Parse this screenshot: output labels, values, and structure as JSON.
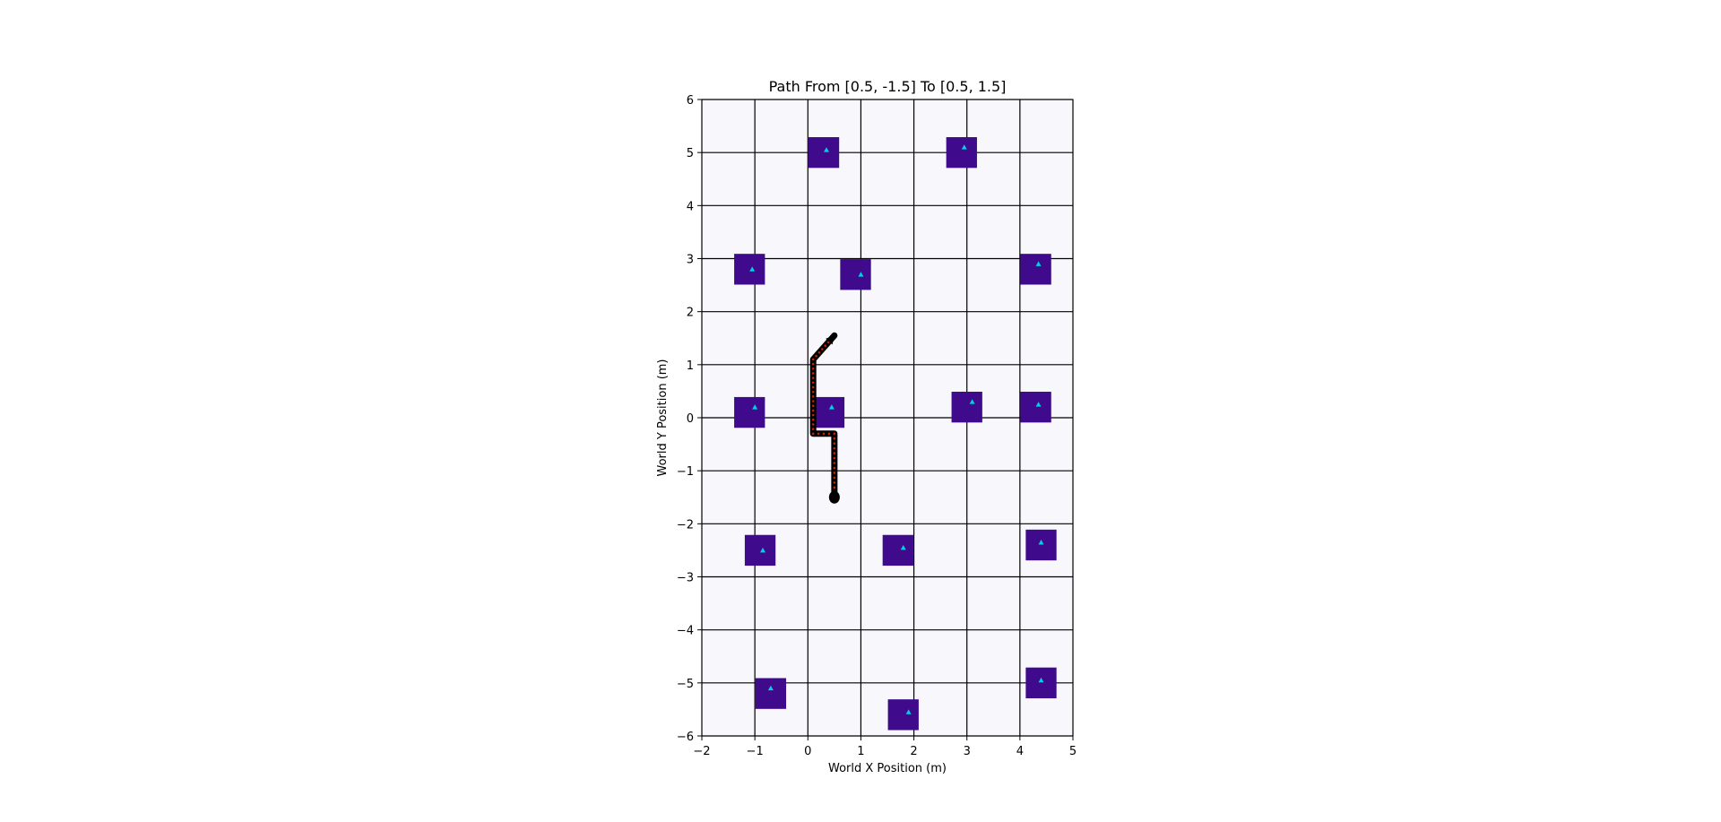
{
  "chart_data": {
    "type": "scatter",
    "title": "Path From [0.5, -1.5] To [0.5, 1.5]",
    "xlabel": "World X Position (m)",
    "ylabel": "World Y Position (m)",
    "xlim": [
      -2,
      5
    ],
    "ylim": [
      -6,
      6
    ],
    "xticks": [
      -2,
      -1,
      0,
      1,
      2,
      3,
      4,
      5
    ],
    "yticks": [
      -6,
      -5,
      -4,
      -3,
      -2,
      -1,
      0,
      1,
      2,
      3,
      4,
      5,
      6
    ],
    "xtick_labels": [
      "−2",
      "−1",
      "0",
      "1",
      "2",
      "3",
      "4",
      "5"
    ],
    "ytick_labels": [
      "−6",
      "−5",
      "−4",
      "−3",
      "−2",
      "−1",
      "0",
      "1",
      "2",
      "3",
      "4",
      "5",
      "6"
    ],
    "grid": true,
    "obstacle_size": 0.58,
    "obstacles": [
      {
        "x": 0.3,
        "y": 5.0
      },
      {
        "x": 2.9,
        "y": 5.0
      },
      {
        "x": -1.1,
        "y": 2.8
      },
      {
        "x": 0.9,
        "y": 2.7
      },
      {
        "x": 4.3,
        "y": 2.8
      },
      {
        "x": -1.1,
        "y": 0.1
      },
      {
        "x": 0.4,
        "y": 0.1
      },
      {
        "x": 3.0,
        "y": 0.2
      },
      {
        "x": 4.3,
        "y": 0.2
      },
      {
        "x": -0.9,
        "y": -2.5
      },
      {
        "x": 1.7,
        "y": -2.5
      },
      {
        "x": 4.4,
        "y": -2.4
      },
      {
        "x": -0.7,
        "y": -5.2
      },
      {
        "x": 1.8,
        "y": -5.6
      },
      {
        "x": 4.4,
        "y": -5.0
      }
    ],
    "markers": [
      {
        "x": 0.35,
        "y": 5.05
      },
      {
        "x": 2.95,
        "y": 5.1
      },
      {
        "x": -1.05,
        "y": 2.8
      },
      {
        "x": 1.0,
        "y": 2.7
      },
      {
        "x": 4.35,
        "y": 2.9
      },
      {
        "x": -1.0,
        "y": 0.2
      },
      {
        "x": 0.45,
        "y": 0.2
      },
      {
        "x": 3.1,
        "y": 0.3
      },
      {
        "x": 4.35,
        "y": 0.25
      },
      {
        "x": -0.85,
        "y": -2.5
      },
      {
        "x": 1.8,
        "y": -2.45
      },
      {
        "x": 4.4,
        "y": -2.35
      },
      {
        "x": -0.7,
        "y": -5.1
      },
      {
        "x": 1.9,
        "y": -5.55
      },
      {
        "x": 4.4,
        "y": -4.95
      }
    ],
    "path": [
      {
        "x": 0.5,
        "y": -1.5
      },
      {
        "x": 0.5,
        "y": -0.3
      },
      {
        "x": 0.1,
        "y": -0.3
      },
      {
        "x": 0.1,
        "y": 1.1
      },
      {
        "x": 0.5,
        "y": 1.55
      }
    ],
    "colors": {
      "background": "#f8f8fc",
      "grid": "#000000",
      "obstacle": "#3f0a8c",
      "marker": "#00d0e0",
      "path": "#000000",
      "path_points": "#cc2200"
    }
  }
}
